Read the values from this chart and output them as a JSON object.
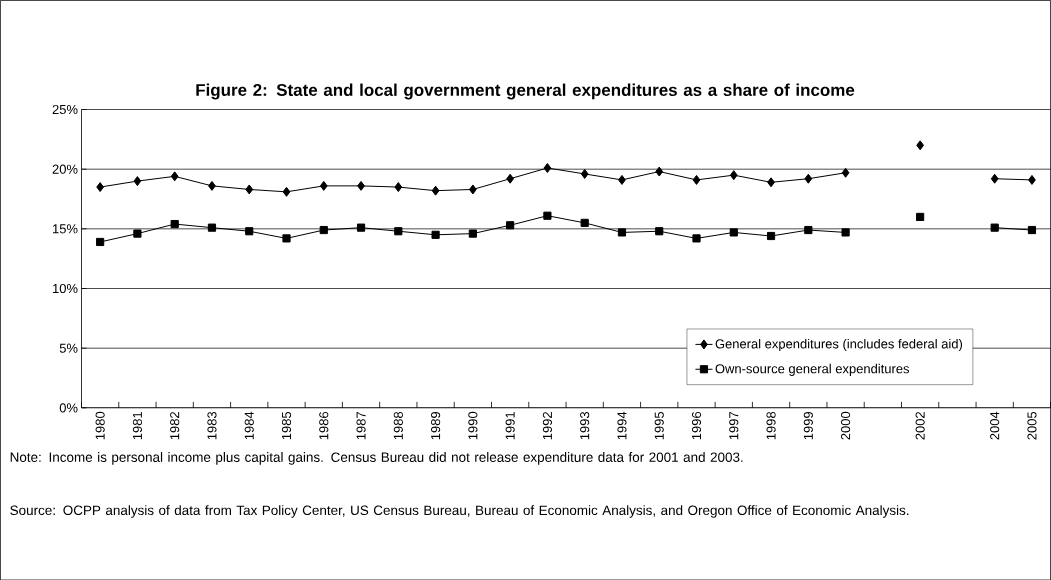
{
  "chart_data": {
    "type": "line",
    "title": "Figure 2: State and local government general expenditures as a share of income",
    "categories": [
      "1980",
      "1981",
      "1982",
      "1983",
      "1984",
      "1985",
      "1986",
      "1987",
      "1988",
      "1989",
      "1990",
      "1991",
      "1992",
      "1993",
      "1994",
      "1995",
      "1996",
      "1997",
      "1998",
      "1999",
      "2000",
      null,
      "2002",
      null,
      "2004",
      "2005"
    ],
    "series": [
      {
        "name": "General expenditures (includes federal aid)",
        "color": "#000000",
        "marker": "diamond",
        "values": [
          18.5,
          19.0,
          19.4,
          18.6,
          18.3,
          18.1,
          18.6,
          18.6,
          18.5,
          18.2,
          18.3,
          19.2,
          20.1,
          19.6,
          19.1,
          19.8,
          19.1,
          19.5,
          18.9,
          19.2,
          19.7,
          null,
          22.0,
          null,
          19.2,
          19.1
        ]
      },
      {
        "name": "Own-source general expenditures",
        "color": "#000000",
        "marker": "square",
        "values": [
          13.9,
          14.6,
          15.4,
          15.1,
          14.8,
          14.2,
          14.9,
          15.1,
          14.8,
          14.5,
          14.6,
          15.3,
          16.1,
          15.5,
          14.7,
          14.8,
          14.2,
          14.7,
          14.4,
          14.9,
          14.7,
          null,
          16.0,
          null,
          15.1,
          14.9
        ]
      }
    ],
    "ylim": [
      0,
      25
    ],
    "yticks": [
      {
        "value": 0,
        "label": "0%"
      },
      {
        "value": 5,
        "label": "5%"
      },
      {
        "value": 10,
        "label": "10%"
      },
      {
        "value": 15,
        "label": "15%"
      },
      {
        "value": 20,
        "label": "20%"
      },
      {
        "value": 25,
        "label": "25%"
      }
    ],
    "grid": "y",
    "legend": "bottom right",
    "annotations": [
      "Note: Income is personal income plus capital gains. Census Bureau did not release expenditure data for 2001 and 2003.",
      "Source: OCPP analysis of data from Tax Policy Center, US Census Bureau, Bureau of Economic Analysis, and Oregon Office of Economic Analysis."
    ]
  }
}
